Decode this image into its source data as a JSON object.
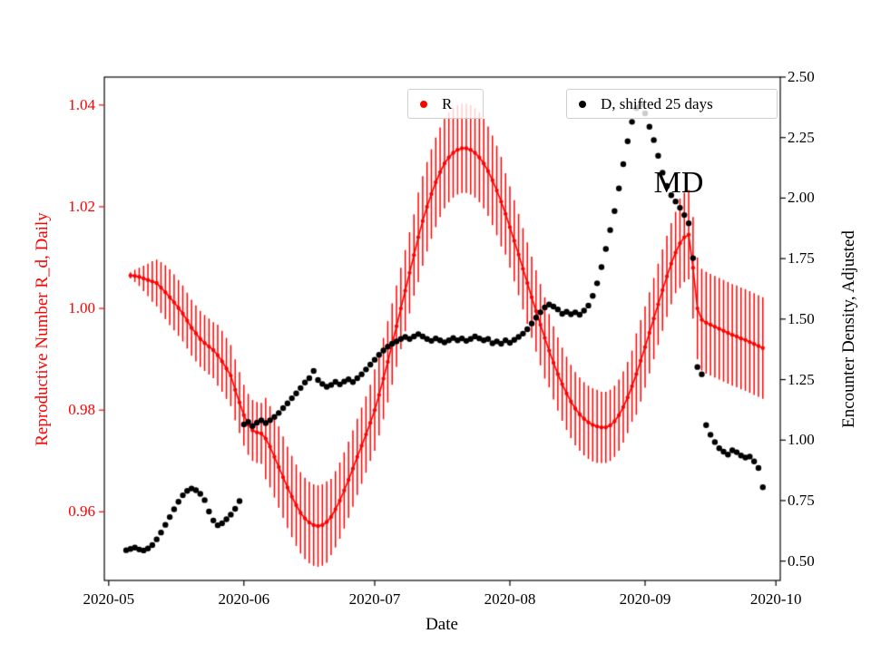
{
  "chart_data": {
    "type": "line",
    "title": "",
    "xlabel": "Date",
    "x_unit": "day offset, 0 = 2020-05-01",
    "xlim": [
      -1,
      154
    ],
    "grid": false,
    "x_ticks": [
      {
        "offset": 0,
        "label": "2020-05"
      },
      {
        "offset": 31,
        "label": "2020-06"
      },
      {
        "offset": 61,
        "label": "2020-07"
      },
      {
        "offset": 92,
        "label": "2020-08"
      },
      {
        "offset": 123,
        "label": "2020-09"
      },
      {
        "offset": 153,
        "label": "2020-10"
      }
    ],
    "axes": {
      "left": {
        "label": "Reproductive Number R_d, Daily",
        "color": "#ff0000",
        "lim": [
          0.9465,
          1.0455
        ],
        "ticks": [
          0.96,
          0.98,
          1.0,
          1.02,
          1.04
        ]
      },
      "right": {
        "label": "Encounter Density, Adjusted",
        "color": "#000000",
        "lim": [
          0.42,
          2.5
        ],
        "ticks": [
          0.5,
          0.75,
          1.0,
          1.25,
          1.5,
          1.75,
          2.0,
          2.25,
          2.5
        ]
      }
    },
    "legend_positions": "two boxes, upper center and upper right",
    "annotations": [
      {
        "text": "MD",
        "x_day": 125,
        "y_right": 2.06
      }
    ],
    "series": [
      {
        "name": "R",
        "axis": "left",
        "color": "#ff0000",
        "plot_style": "line with point markers and vertical error bars",
        "x_first_day": 5,
        "x_step_days": 1,
        "y": [
          1.0065,
          1.0064,
          1.0062,
          1.0059,
          1.0056,
          1.0053,
          1.005,
          1.0041,
          1.0032,
          1.0022,
          1.0012,
          1.0001,
          0.999,
          0.9976,
          0.9962,
          0.9951,
          0.994,
          0.9932,
          0.9925,
          0.9918,
          0.9908,
          0.9896,
          0.9882,
          0.9868,
          0.984,
          0.9815,
          0.979,
          0.9772,
          0.976,
          0.9756,
          0.9754,
          0.9744,
          0.9728,
          0.9708,
          0.9688,
          0.9668,
          0.9648,
          0.963,
          0.9613,
          0.9598,
          0.9587,
          0.9579,
          0.9574,
          0.9572,
          0.9574,
          0.958,
          0.959,
          0.9605,
          0.9622,
          0.9642,
          0.9663,
          0.9685,
          0.9708,
          0.973,
          0.9752,
          0.9775,
          0.98,
          0.983,
          0.9862,
          0.9895,
          0.993,
          0.9965,
          1.0,
          1.0035,
          1.007,
          1.0105,
          1.014,
          1.0172,
          1.02,
          1.0225,
          1.0248,
          1.0268,
          1.0285,
          1.0297,
          1.0306,
          1.0312,
          1.0315,
          1.0315,
          1.0312,
          1.0306,
          1.0297,
          1.0285,
          1.027,
          1.0252,
          1.0232,
          1.021,
          1.0186,
          1.016,
          1.0133,
          1.0106,
          1.0078,
          1.005,
          1.0022,
          0.9995,
          0.9968,
          0.9942,
          0.9917,
          0.9893,
          0.9871,
          0.9851,
          0.9833,
          0.9817,
          0.9803,
          0.9792,
          0.9783,
          0.9776,
          0.9771,
          0.9768,
          0.9766,
          0.9766,
          0.977,
          0.9778,
          0.979,
          0.9806,
          0.9825,
          0.9847,
          0.9871,
          0.9897,
          0.9924,
          0.9952,
          0.998,
          1.0008,
          1.0036,
          1.0063,
          1.0088,
          1.011,
          1.0128,
          1.014,
          1.0145,
          1.008,
          1.0,
          0.9978,
          0.9972,
          0.9968,
          0.9964,
          0.996,
          0.9956,
          0.9952,
          0.9948,
          0.9945,
          0.9941,
          0.9938,
          0.9934,
          0.993,
          0.9926,
          0.9922
        ],
        "yerr": [
          0.0006,
          0.0012,
          0.0018,
          0.0025,
          0.0032,
          0.004,
          0.0046,
          0.005,
          0.0053,
          0.0055,
          0.0055,
          0.0055,
          0.0055,
          0.0055,
          0.0055,
          0.0055,
          0.0055,
          0.0055,
          0.0055,
          0.0055,
          0.006,
          0.006,
          0.006,
          0.006,
          0.006,
          0.006,
          0.006,
          0.006,
          0.006,
          0.006,
          0.006,
          0.008,
          0.008,
          0.008,
          0.008,
          0.008,
          0.008,
          0.008,
          0.008,
          0.008,
          0.008,
          0.008,
          0.008,
          0.008,
          0.008,
          0.008,
          0.0075,
          0.0075,
          0.0075,
          0.0075,
          0.0075,
          0.0075,
          0.0075,
          0.0075,
          0.0075,
          0.0075,
          0.008,
          0.008,
          0.008,
          0.008,
          0.008,
          0.008,
          0.008,
          0.008,
          0.008,
          0.008,
          0.0088,
          0.0088,
          0.0088,
          0.0088,
          0.0088,
          0.0088,
          0.0088,
          0.0088,
          0.0088,
          0.0088,
          0.0088,
          0.0088,
          0.0088,
          0.0088,
          0.0088,
          0.0088,
          0.0088,
          0.0088,
          0.0088,
          0.0088,
          0.008,
          0.008,
          0.008,
          0.008,
          0.008,
          0.008,
          0.008,
          0.008,
          0.008,
          0.008,
          0.0072,
          0.0072,
          0.0072,
          0.0072,
          0.0072,
          0.0072,
          0.0072,
          0.0072,
          0.0072,
          0.0072,
          0.0072,
          0.0072,
          0.007,
          0.007,
          0.007,
          0.007,
          0.007,
          0.007,
          0.007,
          0.007,
          0.008,
          0.008,
          0.008,
          0.008,
          0.008,
          0.008,
          0.008,
          0.008,
          0.008,
          0.008,
          0.0088,
          0.0088,
          0.0088,
          0.01,
          0.01,
          0.01,
          0.01,
          0.01,
          0.01,
          0.01,
          0.01,
          0.01,
          0.01,
          0.01,
          0.01,
          0.01,
          0.01,
          0.01,
          0.01,
          0.01
        ]
      },
      {
        "name": "D, shifted 25 days",
        "axis": "right",
        "color": "#000000",
        "plot_style": "scatter",
        "x_first_day": 4,
        "x_step_days": 1,
        "y": [
          0.545,
          0.55,
          0.556,
          0.548,
          0.544,
          0.552,
          0.566,
          0.59,
          0.618,
          0.65,
          0.682,
          0.714,
          0.745,
          0.772,
          0.79,
          0.8,
          0.793,
          0.778,
          0.752,
          0.705,
          0.668,
          0.648,
          0.656,
          0.673,
          0.692,
          0.716,
          0.748,
          1.065,
          1.075,
          1.058,
          1.072,
          1.082,
          1.07,
          1.082,
          1.096,
          1.112,
          1.132,
          1.152,
          1.173,
          1.193,
          1.215,
          1.238,
          1.256,
          1.286,
          1.248,
          1.232,
          1.22,
          1.228,
          1.241,
          1.23,
          1.242,
          1.251,
          1.24,
          1.256,
          1.272,
          1.292,
          1.312,
          1.332,
          1.352,
          1.37,
          1.386,
          1.398,
          1.408,
          1.418,
          1.426,
          1.418,
          1.428,
          1.438,
          1.428,
          1.418,
          1.41,
          1.42,
          1.412,
          1.404,
          1.412,
          1.422,
          1.412,
          1.42,
          1.41,
          1.418,
          1.428,
          1.42,
          1.412,
          1.418,
          1.4,
          1.408,
          1.398,
          1.412,
          1.402,
          1.414,
          1.426,
          1.44,
          1.458,
          1.482,
          1.506,
          1.528,
          1.548,
          1.56,
          1.552,
          1.54,
          1.522,
          1.53,
          1.52,
          1.528,
          1.518,
          1.535,
          1.556,
          1.596,
          1.648,
          1.715,
          1.79,
          1.868,
          1.946,
          2.04,
          2.14,
          2.235,
          2.315,
          2.372,
          2.386,
          2.35,
          2.295,
          2.24,
          2.175,
          2.105,
          2.05,
          2.012,
          1.986,
          1.96,
          1.93,
          1.896,
          1.752,
          1.302,
          1.272,
          1.062,
          1.022,
          0.992,
          0.966,
          0.952,
          0.94,
          0.958,
          0.95,
          0.936,
          0.928,
          0.932,
          0.912,
          0.885,
          0.805
        ]
      }
    ]
  }
}
